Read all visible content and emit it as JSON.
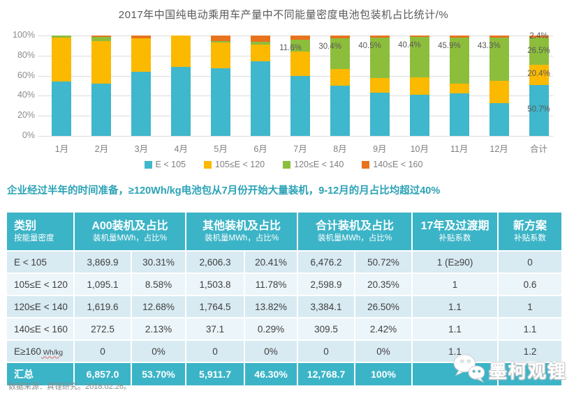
{
  "title": "2017年中国纯电动乘用车产量中不同能量密度电池包装机占比统计/%",
  "subtitle": "企业经过半年的时间准备，≥120Wh/kg电池包从7月份开始大量装机，9-12月的月占比均超过40%",
  "chart_data": {
    "type": "bar",
    "variant": "stacked-100-percent",
    "title": "2017年中国纯电动乘用车产量中不同能量密度电池包装机占比统计/%",
    "categories": [
      "1月",
      "2月",
      "3月",
      "4月",
      "5月",
      "6月",
      "7月",
      "8月",
      "9月",
      "10月",
      "11月",
      "12月",
      "合计"
    ],
    "series": [
      {
        "name": "E < 105",
        "color": "#3fb7cc",
        "values": [
          54.4,
          52.1,
          64.1,
          68.8,
          67.2,
          74.1,
          60.0,
          50.0,
          43.3,
          41.2,
          42.1,
          32.4,
          50.7
        ]
      },
      {
        "name": "105≤E < 120",
        "color": "#fbb900",
        "values": [
          43.6,
          42.2,
          32.9,
          31.2,
          25.8,
          16.9,
          24.0,
          16.5,
          14.3,
          17.1,
          10.0,
          22.5,
          20.4
        ]
      },
      {
        "name": "120≤E < 140",
        "color": "#8cbe3c",
        "values": [
          2.0,
          4.2,
          0,
          0,
          1.5,
          2.8,
          11.6,
          30.4,
          40.5,
          40.4,
          45.9,
          43.3,
          26.5
        ]
      },
      {
        "name": "140≤E < 160",
        "color": "#e8731c",
        "values": [
          0,
          1.5,
          3.0,
          0,
          5.5,
          6.2,
          4.4,
          3.1,
          1.9,
          1.3,
          2.0,
          1.8,
          2.4
        ]
      }
    ],
    "month_green_labels": [
      null,
      null,
      null,
      null,
      null,
      null,
      "11.6%",
      "30.4%",
      "40.5%",
      "40.4%",
      "45.9%",
      "43.3%",
      null
    ],
    "total_bar_labels": [
      "50.7%",
      "20.4%",
      "26.5%",
      "2.4%"
    ],
    "y_ticks": [
      "0%",
      "20%",
      "40%",
      "60%",
      "80%",
      "100%"
    ],
    "ylim": [
      0,
      100
    ],
    "grid": true,
    "legend_position": "bottom"
  },
  "table": {
    "header_groups": [
      {
        "main": "类别",
        "sub": "按能量密度",
        "span": 1
      },
      {
        "main": "A00装机及占比",
        "sub": "装机量MWh，占比%",
        "span": 2
      },
      {
        "main": "其他装机及占比",
        "sub": "装机量MWh，占比%",
        "span": 2
      },
      {
        "main": "合计装机及占比",
        "sub": "装机量MWh，占比%",
        "span": 2
      },
      {
        "main": "17年及过渡期",
        "sub": "补贴系数",
        "span": 1
      },
      {
        "main": "新方案",
        "sub": "补贴系数",
        "span": 1
      }
    ],
    "rows": [
      {
        "category": "E < 105",
        "category_unit": "",
        "values": [
          "3,869.9",
          "30.31%",
          "2,606.3",
          "20.41%",
          "6,476.2",
          "50.72%",
          "1 (E≥90)",
          "0"
        ]
      },
      {
        "category": "105≤E < 120",
        "category_unit": "",
        "values": [
          "1,095.1",
          "8.58%",
          "1,503.8",
          "11.78%",
          "2,598.9",
          "20.35%",
          "1",
          "0.6"
        ]
      },
      {
        "category": "120≤E < 140",
        "category_unit": "",
        "values": [
          "1,619.6",
          "12.68%",
          "1,764.5",
          "13.82%",
          "3,384.1",
          "26.50%",
          "1.1",
          "1"
        ]
      },
      {
        "category": "140≤E < 160",
        "category_unit": "",
        "values": [
          "272.5",
          "2.13%",
          "37.1",
          "0.29%",
          "309.5",
          "2.42%",
          "1.1",
          "1.1"
        ]
      },
      {
        "category": "E≥160",
        "category_unit": "Wh/kg",
        "values": [
          "0",
          "0%",
          "0",
          "0%",
          "0",
          "0%",
          "1.1",
          "1.2"
        ]
      }
    ],
    "total_row": {
      "category": "汇总",
      "values": [
        "6,857.0",
        "53.70%",
        "5,911.7",
        "46.30%",
        "12,768.7",
        "100%",
        "",
        ""
      ]
    }
  },
  "footer": {
    "source": "数据来源：真锂研究。2018.02.26。"
  },
  "watermark": {
    "text": "墨柯观锂",
    "icon": "wechat-icon"
  },
  "colors": {
    "accent_teal": "#3cb4c7",
    "subtitle_teal": "#2aa2b6",
    "row_odd": "#d8eaf2",
    "row_even": "#ecf5f9",
    "series_blue": "#3fb7cc",
    "series_yellow": "#fbb900",
    "series_green": "#8cbe3c",
    "series_orange": "#e8731c"
  }
}
